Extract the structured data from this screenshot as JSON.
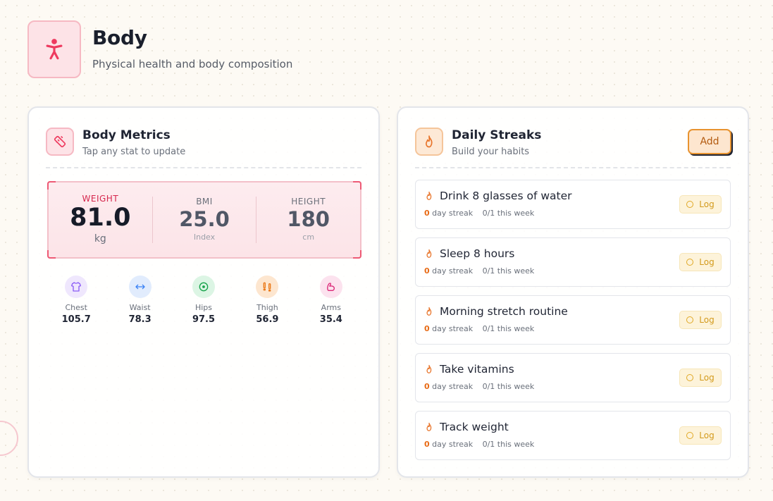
{
  "page": {
    "title": "Body",
    "subtitle": "Physical health and body composition"
  },
  "metrics_card": {
    "title": "Body Metrics",
    "subtitle": "Tap any stat to update",
    "primary": [
      {
        "label": "WEIGHT",
        "value": "81.0",
        "unit": "kg"
      },
      {
        "label": "BMI",
        "value": "25.0",
        "unit": "Index"
      },
      {
        "label": "HEIGHT",
        "value": "180",
        "unit": "cm"
      }
    ],
    "measurements": [
      {
        "label": "Chest",
        "value": "105.7",
        "icon": "shirt-icon",
        "color": "#8b5cf6",
        "bg": "#efe7fd"
      },
      {
        "label": "Waist",
        "value": "78.3",
        "icon": "arrows-horizontal-icon",
        "color": "#3b82f6",
        "bg": "#e1ecfd"
      },
      {
        "label": "Hips",
        "value": "97.5",
        "icon": "target-icon",
        "color": "#16a34a",
        "bg": "#dcf5e4"
      },
      {
        "label": "Thigh",
        "value": "56.9",
        "icon": "footprints-icon",
        "color": "#ea7a1a",
        "bg": "#fde6cf"
      },
      {
        "label": "Arms",
        "value": "35.4",
        "icon": "bicep-icon",
        "color": "#db2777",
        "bg": "#fce2ee"
      }
    ]
  },
  "streaks_card": {
    "title": "Daily Streaks",
    "subtitle": "Build your habits",
    "add_label": "Add",
    "items": [
      {
        "name": "Drink 8 glasses of water",
        "streak": "0",
        "streak_label": "day streak",
        "week": "0/1 this week",
        "log_label": "Log"
      },
      {
        "name": "Sleep 8 hours",
        "streak": "0",
        "streak_label": "day streak",
        "week": "0/1 this week",
        "log_label": "Log"
      },
      {
        "name": "Morning stretch routine",
        "streak": "0",
        "streak_label": "day streak",
        "week": "0/1 this week",
        "log_label": "Log"
      },
      {
        "name": "Take vitamins",
        "streak": "0",
        "streak_label": "day streak",
        "week": "0/1 this week",
        "log_label": "Log"
      },
      {
        "name": "Track weight",
        "streak": "0",
        "streak_label": "day streak",
        "week": "0/1 this week",
        "log_label": "Log"
      }
    ]
  },
  "colors": {
    "accent_red": "#ee3a5f",
    "accent_orange": "#e8742a"
  }
}
